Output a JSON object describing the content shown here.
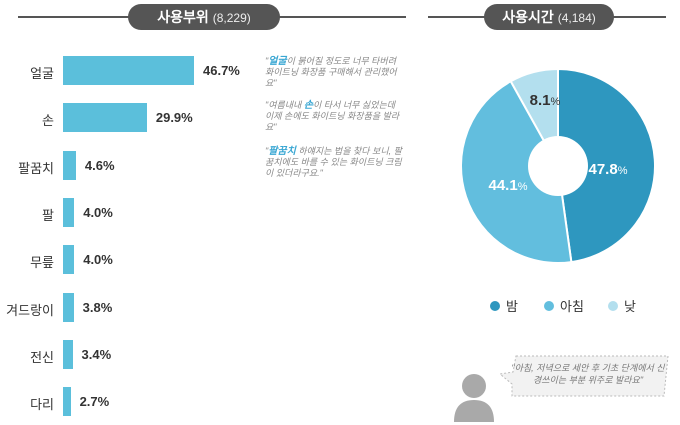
{
  "usage_area": {
    "title": "사용부위",
    "count": "(8,229)"
  },
  "usage_time": {
    "title": "사용시간",
    "count": "(4,184)"
  },
  "quotes": [
    {
      "before": "\"",
      "highlight": "얼굴",
      "after": "이 붉어질 정도로 너무 타버려 화이트닝 화장품 구매해서 관리했어요\""
    },
    {
      "before": "\"여름내내 ",
      "highlight": "손",
      "after": "이 타서 너무 싫었는데 이제 손에도 화이트닝 화장품을 발라요\""
    },
    {
      "before": "\"",
      "highlight": "팔꿈치",
      "after": " 하얘지는 법을 찾다 보니, 팔꿈치에도 바를 수 있는 화이트닝 크림이 있더라구요.\""
    }
  ],
  "comment": "\"아침, 저녁으로 세안 후 기초 단계에서 신경쓰이는 부분 위주로 발라요\"",
  "chart_data": [
    {
      "type": "bar",
      "orientation": "horizontal",
      "title": "사용부위 (8,229)",
      "categories": [
        "얼굴",
        "손",
        "팔꿈치",
        "팔",
        "무릎",
        "겨드랑이",
        "전신",
        "다리"
      ],
      "values": [
        46.7,
        29.9,
        4.6,
        4.0,
        4.0,
        3.8,
        3.4,
        2.7
      ],
      "value_labels": [
        "46.7%",
        "29.9%",
        "4.6%",
        "4.0%",
        "4.0%",
        "3.8%",
        "3.4%",
        "2.7%"
      ],
      "color": "#5bbfdb"
    },
    {
      "type": "pie",
      "donut": true,
      "title": "사용시간 (4,184)",
      "labels": [
        "밤",
        "아침",
        "낮"
      ],
      "values": [
        47.8,
        44.1,
        8.1
      ],
      "value_labels": [
        "47.8",
        "44.1",
        "8.1"
      ],
      "unit": "%",
      "colors": [
        "#2e97bf",
        "#62bede",
        "#b3dfee"
      ],
      "legend": "bottom"
    }
  ]
}
